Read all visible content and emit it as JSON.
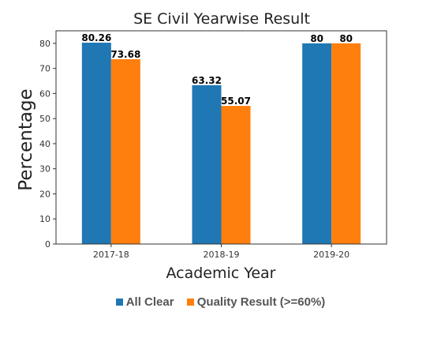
{
  "chart_data": {
    "type": "bar",
    "title": "SE Civil Yearwise Result",
    "xlabel": "Academic Year",
    "ylabel": "Percentage",
    "categories": [
      "2017-18",
      "2018-19",
      "2019-20"
    ],
    "ylim": [
      0,
      85
    ],
    "yticks": [
      0,
      10,
      20,
      30,
      40,
      50,
      60,
      70,
      80
    ],
    "series": [
      {
        "name": "All Clear",
        "values": [
          80.26,
          63.32,
          80
        ],
        "labels": [
          "80.26",
          "63.32",
          "80"
        ],
        "color": "#1f77b4"
      },
      {
        "name": "Quality Result (>=60%)",
        "values": [
          73.68,
          55.07,
          80
        ],
        "labels": [
          "73.68",
          "55.07",
          "80"
        ],
        "color": "#ff7f0e"
      }
    ],
    "legend_position": "bottom",
    "grid": false
  }
}
